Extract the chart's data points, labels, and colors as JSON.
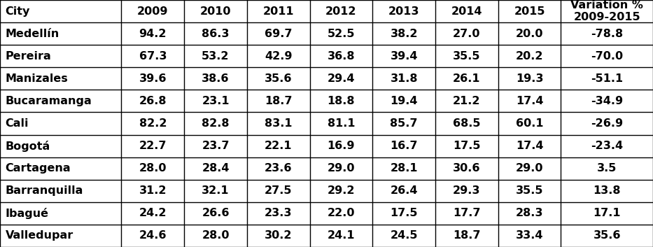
{
  "columns": [
    "City",
    "2009",
    "2010",
    "2011",
    "2012",
    "2013",
    "2014",
    "2015",
    "Variation %\n2009-2015"
  ],
  "rows": [
    [
      "Medellín",
      "94.2",
      "86.3",
      "69.7",
      "52.5",
      "38.2",
      "27.0",
      "20.0",
      "-78.8"
    ],
    [
      "Pereira",
      "67.3",
      "53.2",
      "42.9",
      "36.8",
      "39.4",
      "35.5",
      "20.2",
      "-70.0"
    ],
    [
      "Manizales",
      "39.6",
      "38.6",
      "35.6",
      "29.4",
      "31.8",
      "26.1",
      "19.3",
      "-51.1"
    ],
    [
      "Bucaramanga",
      "26.8",
      "23.1",
      "18.7",
      "18.8",
      "19.4",
      "21.2",
      "17.4",
      "-34.9"
    ],
    [
      "Cali",
      "82.2",
      "82.8",
      "83.1",
      "81.1",
      "85.7",
      "68.5",
      "60.1",
      "-26.9"
    ],
    [
      "Bogotá",
      "22.7",
      "23.7",
      "22.1",
      "16.9",
      "16.7",
      "17.5",
      "17.4",
      "-23.4"
    ],
    [
      "Cartagena",
      "28.0",
      "28.4",
      "23.6",
      "29.0",
      "28.1",
      "30.6",
      "29.0",
      "3.5"
    ],
    [
      "Barranquilla",
      "31.2",
      "32.1",
      "27.5",
      "29.2",
      "26.4",
      "29.3",
      "35.5",
      "13.8"
    ],
    [
      "Ibagué",
      "24.2",
      "26.6",
      "23.3",
      "22.0",
      "17.5",
      "17.7",
      "28.3",
      "17.1"
    ],
    [
      "Valledupar",
      "24.6",
      "28.0",
      "30.2",
      "24.1",
      "24.5",
      "18.7",
      "33.4",
      "35.6"
    ]
  ],
  "col_widths": [
    1.45,
    0.75,
    0.75,
    0.75,
    0.75,
    0.75,
    0.75,
    0.75,
    1.1
  ],
  "bg_color": "#ffffff",
  "border_color": "#000000",
  "text_color": "#000000",
  "header_fontsize": 11.5,
  "cell_fontsize": 11.5,
  "fig_width": 9.33,
  "fig_height": 3.53,
  "dpi": 100
}
